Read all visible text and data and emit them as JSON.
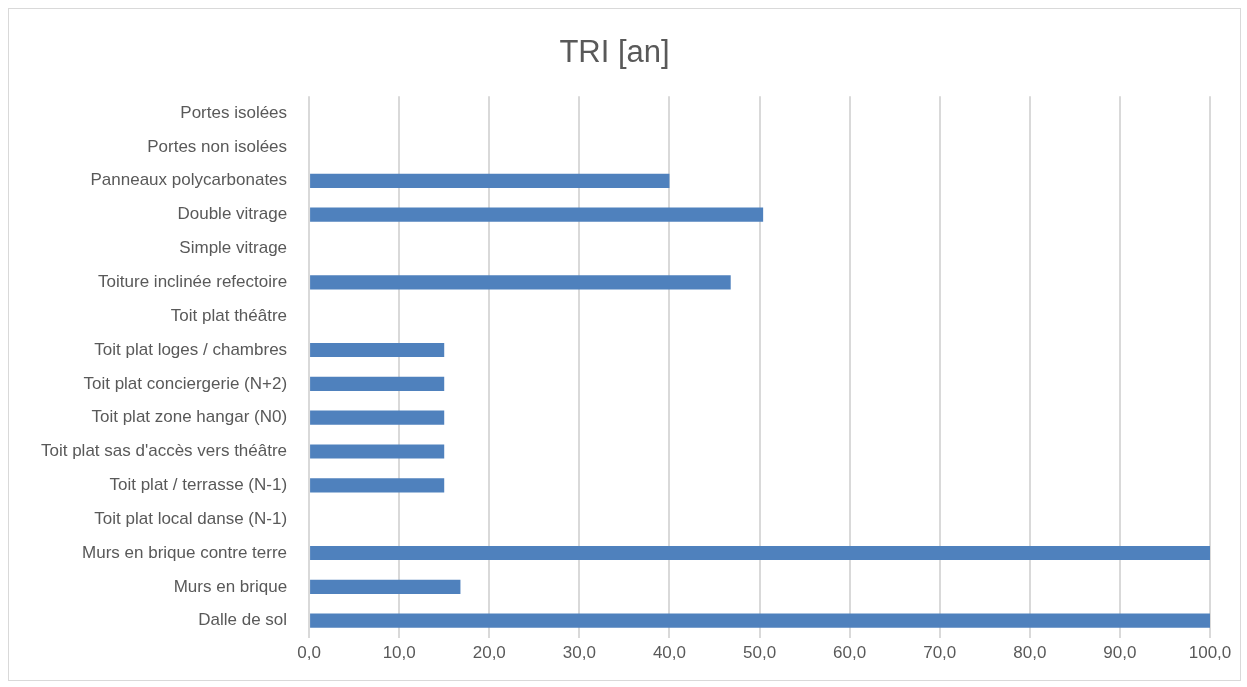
{
  "chart_data": {
    "type": "bar",
    "orientation": "horizontal",
    "title": "TRI [an]",
    "categories": [
      "Portes isolées",
      "Portes non isolées",
      "Panneaux polycarbonates",
      "Double vitrage",
      "Simple vitrage",
      "Toiture inclinée refectoire",
      "Toit plat théâtre",
      "Toit plat loges / chambres",
      "Toit plat conciergerie (N+2)",
      "Toit plat zone hangar (N0)",
      "Toit plat sas d'accès vers théâtre",
      "Toit plat / terrasse (N-1)",
      "Toit plat local danse (N-1)",
      "Murs en brique contre terre",
      "Murs en brique",
      "Dalle de sol"
    ],
    "values": [
      null,
      null,
      40,
      50.4,
      null,
      46.8,
      null,
      15,
      15,
      15,
      15,
      15,
      null,
      100,
      16.8,
      100
    ],
    "color": "#4f81bd",
    "xlim": [
      0,
      100
    ],
    "xticks": [
      {
        "value": 0,
        "label": "0,0"
      },
      {
        "value": 10,
        "label": "10,0"
      },
      {
        "value": 20,
        "label": "20,0"
      },
      {
        "value": 30,
        "label": "30,0"
      },
      {
        "value": 40,
        "label": "40,0"
      },
      {
        "value": 50,
        "label": "50,0"
      },
      {
        "value": 60,
        "label": "60,0"
      },
      {
        "value": 70,
        "label": "70,0"
      },
      {
        "value": 80,
        "label": "80,0"
      },
      {
        "value": 90,
        "label": "90,0"
      },
      {
        "value": 100,
        "label": "100,0"
      }
    ],
    "grid": "x",
    "legend": false
  }
}
